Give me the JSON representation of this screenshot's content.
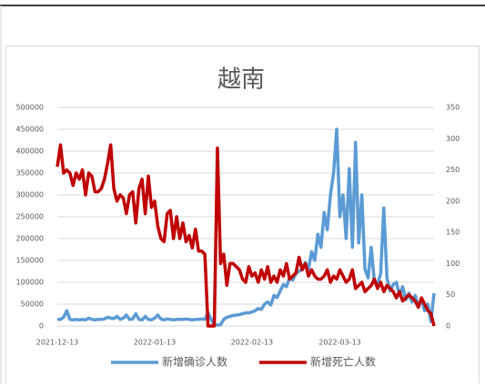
{
  "chart_data": {
    "type": "line",
    "title": "越南",
    "x": [
      "2021-12-13",
      "2021-12-14",
      "2021-12-15",
      "2021-12-16",
      "2021-12-17",
      "2021-12-18",
      "2021-12-19",
      "2021-12-20",
      "2021-12-21",
      "2021-12-22",
      "2021-12-23",
      "2021-12-24",
      "2021-12-25",
      "2021-12-26",
      "2021-12-27",
      "2021-12-28",
      "2021-12-29",
      "2021-12-30",
      "2021-12-31",
      "2022-01-01",
      "2022-01-02",
      "2022-01-03",
      "2022-01-04",
      "2022-01-05",
      "2022-01-06",
      "2022-01-07",
      "2022-01-08",
      "2022-01-09",
      "2022-01-10",
      "2022-01-11",
      "2022-01-12",
      "2022-01-13",
      "2022-01-14",
      "2022-01-15",
      "2022-01-16",
      "2022-01-17",
      "2022-01-18",
      "2022-01-19",
      "2022-01-20",
      "2022-01-21",
      "2022-01-22",
      "2022-01-23",
      "2022-01-24",
      "2022-01-25",
      "2022-01-26",
      "2022-01-27",
      "2022-01-28",
      "2022-01-29",
      "2022-01-30",
      "2022-01-31",
      "2022-02-01",
      "2022-02-02",
      "2022-02-03",
      "2022-02-04",
      "2022-02-05",
      "2022-02-06",
      "2022-02-07",
      "2022-02-08",
      "2022-02-09",
      "2022-02-10",
      "2022-02-11",
      "2022-02-12",
      "2022-02-13",
      "2022-02-14",
      "2022-02-15",
      "2022-02-16",
      "2022-02-17",
      "2022-02-18",
      "2022-02-19",
      "2022-02-20",
      "2022-02-21",
      "2022-02-22",
      "2022-02-23",
      "2022-02-24",
      "2022-02-25",
      "2022-02-26",
      "2022-02-27",
      "2022-02-28",
      "2022-03-01",
      "2022-03-02",
      "2022-03-03",
      "2022-03-04",
      "2022-03-05",
      "2022-03-06",
      "2022-03-07",
      "2022-03-08",
      "2022-03-09",
      "2022-03-10",
      "2022-03-11",
      "2022-03-12",
      "2022-03-13",
      "2022-03-14",
      "2022-03-15",
      "2022-03-16",
      "2022-03-17",
      "2022-03-18",
      "2022-03-19",
      "2022-03-20",
      "2022-03-21",
      "2022-03-22",
      "2022-03-23",
      "2022-03-24",
      "2022-03-25",
      "2022-03-26",
      "2022-03-27",
      "2022-03-28",
      "2022-03-29",
      "2022-03-30",
      "2022-03-31",
      "2022-04-01",
      "2022-04-02",
      "2022-04-03",
      "2022-04-04",
      "2022-04-05",
      "2022-04-06",
      "2022-04-07",
      "2022-04-08",
      "2022-04-09",
      "2022-04-10",
      "2022-04-11",
      "2022-04-12"
    ],
    "xticks": [
      "2021-12-13",
      "2022-01-13",
      "2022-02-13",
      "2022-03-13"
    ],
    "series": [
      {
        "name": "新增确诊人数",
        "color": "#5b9bd5",
        "values": [
          15000,
          15000,
          20000,
          35000,
          15000,
          14000,
          15000,
          14000,
          15000,
          14000,
          18000,
          15000,
          14000,
          15000,
          15000,
          16000,
          20000,
          18000,
          17000,
          22000,
          15000,
          18000,
          25000,
          15000,
          16000,
          28000,
          15000,
          14000,
          22000,
          15000,
          14000,
          18000,
          25000,
          16000,
          14000,
          16000,
          15000,
          14000,
          15000,
          15000,
          15000,
          16000,
          15000,
          14000,
          15000,
          15000,
          16000,
          15000,
          30000,
          15000,
          3000,
          2000,
          3000,
          15000,
          20000,
          22000,
          24000,
          25000,
          26000,
          28000,
          30000,
          30000,
          32000,
          35000,
          40000,
          38000,
          50000,
          55000,
          48000,
          70000,
          65000,
          80000,
          95000,
          90000,
          110000,
          105000,
          120000,
          125000,
          130000,
          145000,
          130000,
          170000,
          150000,
          210000,
          180000,
          260000,
          220000,
          300000,
          350000,
          450000,
          250000,
          300000,
          200000,
          360000,
          180000,
          420000,
          190000,
          300000,
          130000,
          110000,
          180000,
          100000,
          95000,
          120000,
          270000,
          110000,
          80000,
          95000,
          100000,
          70000,
          90000,
          60000,
          75000,
          55000,
          70000,
          45000,
          60000,
          35000,
          50000,
          10000,
          75000
        ]
      },
      {
        "name": "新增死亡人数",
        "color": "#c00000",
        "axis": "y2",
        "values": [
          255,
          290,
          245,
          250,
          245,
          225,
          245,
          235,
          250,
          210,
          245,
          240,
          215,
          215,
          220,
          235,
          260,
          290,
          220,
          200,
          210,
          205,
          180,
          210,
          215,
          165,
          220,
          235,
          180,
          240,
          190,
          200,
          160,
          140,
          135,
          180,
          185,
          140,
          175,
          140,
          165,
          135,
          145,
          125,
          155,
          120,
          120,
          115,
          0,
          0,
          0,
          285,
          100,
          115,
          65,
          100,
          100,
          95,
          90,
          75,
          70,
          95,
          80,
          85,
          70,
          90,
          75,
          95,
          70,
          80,
          70,
          90,
          80,
          100,
          75,
          80,
          85,
          110,
          90,
          100,
          80,
          90,
          80,
          75,
          75,
          80,
          90,
          70,
          80,
          75,
          90,
          80,
          70,
          75,
          90,
          60,
          65,
          70,
          55,
          60,
          65,
          75,
          60,
          70,
          55,
          65,
          60,
          55,
          45,
          55,
          40,
          45,
          50,
          45,
          40,
          30,
          45,
          35,
          25,
          20,
          0
        ]
      }
    ],
    "ylim": [
      0,
      500000
    ],
    "yticks": [
      0,
      50000,
      100000,
      150000,
      200000,
      250000,
      300000,
      350000,
      400000,
      450000,
      500000
    ],
    "y2lim": [
      0,
      350
    ],
    "y2ticks": [
      0,
      50,
      100,
      150,
      200,
      250,
      300,
      350
    ],
    "grid": true,
    "legend": "bottom"
  }
}
